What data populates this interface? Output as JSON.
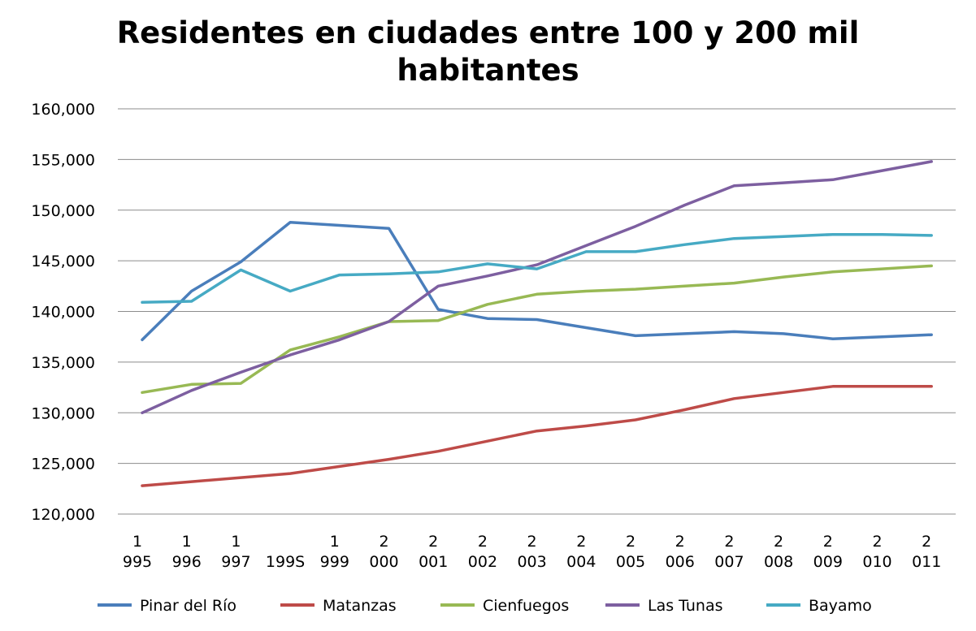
{
  "chart_data": {
    "type": "line",
    "title_lines": [
      "Residentes en ciudades entre 100 y 200 mil",
      "habitantes"
    ],
    "categories": [
      [
        "1",
        "995"
      ],
      [
        "1",
        "996"
      ],
      [
        "1",
        "997"
      ],
      [
        "",
        "199S"
      ],
      [
        "1",
        "999"
      ],
      [
        "2",
        "000"
      ],
      [
        "2",
        "001"
      ],
      [
        "2",
        "002"
      ],
      [
        "2",
        "003"
      ],
      [
        "2",
        "004"
      ],
      [
        "2",
        "005"
      ],
      [
        "2",
        "006"
      ],
      [
        "2",
        "007"
      ],
      [
        "2",
        "008"
      ],
      [
        "2",
        "009"
      ],
      [
        "2",
        "010"
      ],
      [
        "2",
        "011"
      ]
    ],
    "ylim": [
      120000,
      160000
    ],
    "yticks": [
      120000,
      125000,
      130000,
      135000,
      140000,
      145000,
      150000,
      155000,
      160000
    ],
    "ytick_labels": [
      "120,000",
      "125,000",
      "130,000",
      "135,000",
      "140,000",
      "145,000",
      "150,000",
      "155,000",
      "160,000"
    ],
    "grid": true,
    "legend_position": "bottom",
    "series": [
      {
        "name": "Pinar del Río",
        "color": "#4a7ebb",
        "values": [
          137200,
          142000,
          144900,
          148800,
          148500,
          148200,
          140200,
          139300,
          139200,
          138400,
          137600,
          137800,
          138000,
          137800,
          137300,
          137500,
          137700
        ]
      },
      {
        "name": "Matanzas",
        "color": "#be4b48",
        "values": [
          122800,
          123200,
          123600,
          124000,
          124700,
          125400,
          126200,
          127200,
          128200,
          128700,
          129300,
          130300,
          131400,
          132000,
          132600,
          132600,
          132600
        ]
      },
      {
        "name": "Cienfuegos",
        "color": "#98b954",
        "values": [
          132000,
          132800,
          132900,
          136200,
          137500,
          139000,
          139100,
          140700,
          141700,
          142000,
          142200,
          142500,
          142800,
          143400,
          143900,
          144200,
          144500
        ]
      },
      {
        "name": "Las Tunas",
        "color": "#7d5fa0",
        "values": [
          130000,
          132200,
          134000,
          135700,
          137200,
          139000,
          142500,
          143500,
          144600,
          146500,
          148400,
          150500,
          152400,
          152700,
          153000,
          153900,
          154800
        ]
      },
      {
        "name": "Bayamo",
        "color": "#46aac4",
        "values": [
          140900,
          141000,
          144100,
          142000,
          143600,
          143700,
          143900,
          144700,
          144200,
          145900,
          145900,
          146600,
          147200,
          147400,
          147600,
          147600,
          147500
        ]
      }
    ]
  }
}
